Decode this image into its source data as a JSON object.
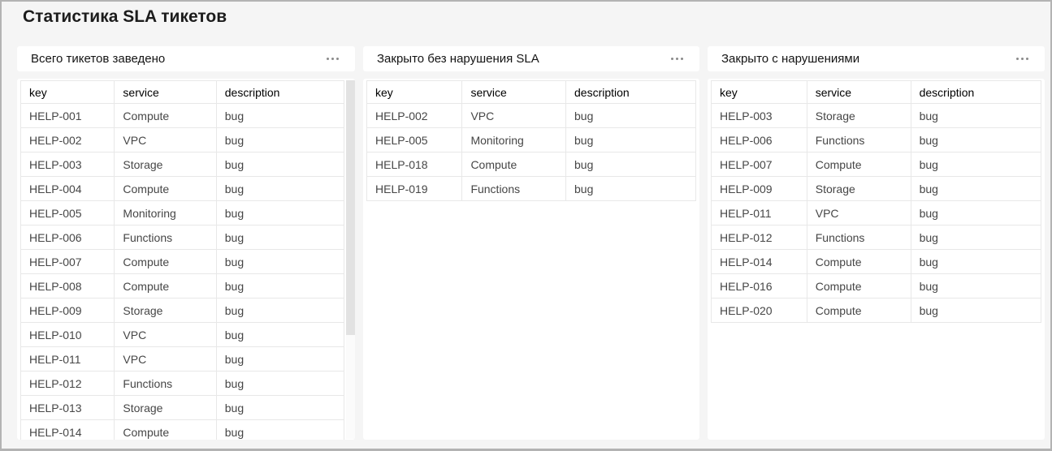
{
  "page": {
    "title": "Статистика SLA тикетов"
  },
  "colors": {
    "page_background": "#f5f5f5",
    "card_background": "#ffffff",
    "table_border": "#e8e8e8",
    "header_text": "#000000",
    "cell_text": "#464646",
    "scrollbar_thumb": "#e2e2e2",
    "menu_dots": "#8a8a8a"
  },
  "panels": [
    {
      "title": "Всего тикетов заведено",
      "menu_icon": "ellipsis-menu-icon",
      "headers": [
        "key",
        "service",
        "description"
      ],
      "scrollable": true,
      "rows": [
        {
          "key": "HELP-001",
          "service": "Compute",
          "description": "bug"
        },
        {
          "key": "HELP-002",
          "service": "VPC",
          "description": "bug"
        },
        {
          "key": "HELP-003",
          "service": "Storage",
          "description": "bug"
        },
        {
          "key": "HELP-004",
          "service": "Compute",
          "description": "bug"
        },
        {
          "key": "HELP-005",
          "service": "Monitoring",
          "description": "bug"
        },
        {
          "key": "HELP-006",
          "service": "Functions",
          "description": "bug"
        },
        {
          "key": "HELP-007",
          "service": "Compute",
          "description": "bug"
        },
        {
          "key": "HELP-008",
          "service": "Compute",
          "description": "bug"
        },
        {
          "key": "HELP-009",
          "service": "Storage",
          "description": "bug"
        },
        {
          "key": "HELP-010",
          "service": "VPC",
          "description": "bug"
        },
        {
          "key": "HELP-011",
          "service": "VPC",
          "description": "bug"
        },
        {
          "key": "HELP-012",
          "service": "Functions",
          "description": "bug"
        },
        {
          "key": "HELP-013",
          "service": "Storage",
          "description": "bug"
        },
        {
          "key": "HELP-014",
          "service": "Compute",
          "description": "bug"
        }
      ]
    },
    {
      "title": "Закрыто без нарушения SLA",
      "menu_icon": "ellipsis-menu-icon",
      "headers": [
        "key",
        "service",
        "description"
      ],
      "scrollable": false,
      "rows": [
        {
          "key": "HELP-002",
          "service": "VPC",
          "description": "bug"
        },
        {
          "key": "HELP-005",
          "service": "Monitoring",
          "description": "bug"
        },
        {
          "key": "HELP-018",
          "service": "Compute",
          "description": "bug"
        },
        {
          "key": "HELP-019",
          "service": "Functions",
          "description": "bug"
        }
      ]
    },
    {
      "title": "Закрыто с нарушениями",
      "menu_icon": "ellipsis-menu-icon",
      "headers": [
        "key",
        "service",
        "description"
      ],
      "scrollable": false,
      "rows": [
        {
          "key": "HELP-003",
          "service": "Storage",
          "description": "bug"
        },
        {
          "key": "HELP-006",
          "service": "Functions",
          "description": "bug"
        },
        {
          "key": "HELP-007",
          "service": "Compute",
          "description": "bug"
        },
        {
          "key": "HELP-009",
          "service": "Storage",
          "description": "bug"
        },
        {
          "key": "HELP-011",
          "service": "VPC",
          "description": "bug"
        },
        {
          "key": "HELP-012",
          "service": "Functions",
          "description": "bug"
        },
        {
          "key": "HELP-014",
          "service": "Compute",
          "description": "bug"
        },
        {
          "key": "HELP-016",
          "service": "Compute",
          "description": "bug"
        },
        {
          "key": "HELP-020",
          "service": "Compute",
          "description": "bug"
        }
      ]
    }
  ]
}
